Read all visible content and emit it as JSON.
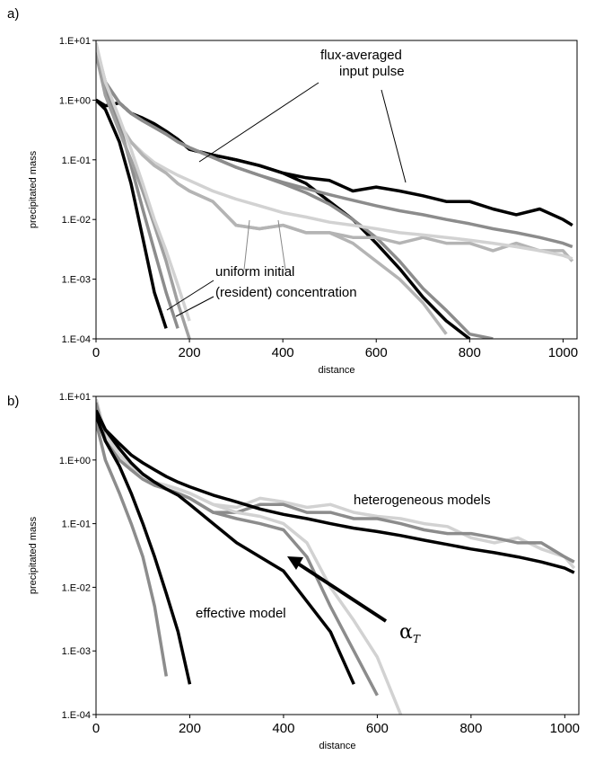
{
  "chart_data": [
    {
      "type": "line",
      "panel_label": "a)",
      "xlabel": "distance",
      "ylabel": "precipitated mass",
      "log_scale": true,
      "xlim": [
        0,
        1030
      ],
      "xticks": [
        0,
        200,
        400,
        600,
        800,
        1000
      ],
      "ylim": [
        0.0001,
        10
      ],
      "yticks": [
        {
          "value": 0.0001,
          "label": "1.E-04"
        },
        {
          "value": 0.001,
          "label": "1.E-03"
        },
        {
          "value": 0.01,
          "label": "1.E-02"
        },
        {
          "value": 0.1,
          "label": "1.E-01"
        },
        {
          "value": 1,
          "label": "1.E+00"
        },
        {
          "value": 10,
          "label": "1.E+01"
        }
      ],
      "annotations": [
        "flux-averaged",
        "input pulse",
        "uniform initial",
        "(resident) concentration"
      ],
      "x": [
        0,
        20,
        50,
        75,
        100,
        125,
        150,
        175,
        200,
        250,
        300,
        350,
        400,
        450,
        500,
        550,
        600,
        650,
        700,
        750,
        800,
        850,
        900,
        950,
        1000,
        1020
      ],
      "series": [
        {
          "color": "#000000",
          "values": [
            1,
            0.8,
            0.9,
            0.6,
            0.5,
            0.4,
            0.3,
            0.22,
            0.15,
            0.12,
            0.1,
            0.08,
            0.06,
            0.05,
            0.045,
            0.03,
            0.035,
            0.03,
            0.025,
            0.02,
            0.02,
            0.015,
            0.012,
            0.015,
            0.01,
            0.008
          ]
        },
        {
          "color": "#000000",
          "values": [
            1,
            0.8,
            0.9,
            0.6,
            0.5,
            0.4,
            0.3,
            0.22,
            0.15,
            0.12,
            0.1,
            0.08,
            0.06,
            0.04,
            0.02,
            0.01,
            0.004,
            0.0015,
            0.0005,
            0.0002,
            0.0001,
            null,
            null,
            null,
            null,
            null
          ]
        },
        {
          "color": "#8c8c8c",
          "values": [
            8,
            2,
            0.9,
            0.6,
            0.45,
            0.35,
            0.27,
            0.2,
            0.16,
            0.11,
            0.075,
            0.055,
            0.042,
            0.033,
            0.026,
            0.021,
            0.017,
            0.014,
            0.012,
            0.01,
            0.0085,
            0.007,
            0.006,
            0.005,
            0.004,
            0.0035
          ]
        },
        {
          "color": "#8c8c8c",
          "values": [
            8,
            2,
            0.9,
            0.6,
            0.45,
            0.35,
            0.27,
            0.2,
            0.16,
            0.11,
            0.075,
            0.055,
            0.04,
            0.028,
            0.018,
            0.01,
            0.005,
            0.002,
            0.0007,
            0.0003,
            0.00012,
            0.0001,
            null,
            null,
            null,
            null
          ]
        },
        {
          "color": "#b4b4b4",
          "values": [
            9,
            1.5,
            0.4,
            0.2,
            0.12,
            0.08,
            0.06,
            0.04,
            0.03,
            0.02,
            0.008,
            0.007,
            0.008,
            0.006,
            0.006,
            0.005,
            0.005,
            0.004,
            0.005,
            0.004,
            0.004,
            0.003,
            0.004,
            0.003,
            0.003,
            0.002
          ]
        },
        {
          "color": "#d2d2d2",
          "values": [
            9,
            1.2,
            0.4,
            0.2,
            0.13,
            0.09,
            0.07,
            0.055,
            0.045,
            0.03,
            0.022,
            0.017,
            0.013,
            0.011,
            0.009,
            0.008,
            0.007,
            0.006,
            0.0055,
            0.005,
            0.0045,
            0.004,
            0.0035,
            0.003,
            0.0025,
            0.0022
          ]
        },
        {
          "color": "#b4b4b4",
          "values": [
            9,
            1.5,
            0.4,
            0.2,
            0.12,
            0.08,
            0.06,
            0.04,
            0.03,
            0.02,
            0.008,
            0.007,
            0.008,
            0.006,
            0.006,
            0.004,
            0.002,
            0.001,
            0.0004,
            0.00012,
            null,
            null,
            null,
            null,
            null,
            null
          ]
        },
        {
          "color": "#000000",
          "values": [
            1,
            0.7,
            0.2,
            0.04,
            0.005,
            0.0006,
            0.00015,
            null,
            null,
            null,
            null,
            null,
            null,
            null,
            null,
            null,
            null,
            null,
            null,
            null,
            null,
            null,
            null,
            null,
            null,
            null
          ]
        },
        {
          "color": "#8c8c8c",
          "values": [
            8,
            1.5,
            0.4,
            0.08,
            0.015,
            0.003,
            0.0006,
            0.00015,
            null,
            null,
            null,
            null,
            null,
            null,
            null,
            null,
            null,
            null,
            null,
            null,
            null,
            null,
            null,
            null,
            null,
            null
          ]
        },
        {
          "color": "#a0a0a0",
          "values": [
            6,
            1.2,
            0.3,
            0.1,
            0.03,
            0.008,
            0.002,
            0.0004,
            0.0001,
            null,
            null,
            null,
            null,
            null,
            null,
            null,
            null,
            null,
            null,
            null,
            null,
            null,
            null,
            null,
            null,
            null
          ]
        },
        {
          "color": "#d2d2d2",
          "values": [
            9,
            2,
            0.5,
            0.15,
            0.04,
            0.01,
            0.003,
            0.0008,
            0.0002,
            null,
            null,
            null,
            null,
            null,
            null,
            null,
            null,
            null,
            null,
            null,
            null,
            null,
            null,
            null,
            null,
            null
          ]
        }
      ]
    },
    {
      "type": "line",
      "panel_label": "b)",
      "xlabel": "distance",
      "ylabel": "precipitated mass",
      "log_scale": true,
      "xlim": [
        0,
        1030
      ],
      "xticks": [
        0,
        200,
        400,
        600,
        800,
        1000
      ],
      "ylim": [
        0.0001,
        10
      ],
      "yticks": [
        {
          "value": 0.0001,
          "label": "1.E-04"
        },
        {
          "value": 0.001,
          "label": "1.E-03"
        },
        {
          "value": 0.01,
          "label": "1.E-02"
        },
        {
          "value": 0.1,
          "label": "1.E-01"
        },
        {
          "value": 1,
          "label": "1.E+00"
        },
        {
          "value": 10,
          "label": "1.E+01"
        }
      ],
      "annotations": [
        "heterogeneous models",
        "effective model"
      ],
      "alpha_symbol": "α",
      "alpha_subscript": "T",
      "x": [
        0,
        20,
        50,
        75,
        100,
        125,
        150,
        175,
        200,
        250,
        300,
        350,
        400,
        450,
        500,
        550,
        600,
        650,
        700,
        750,
        800,
        850,
        900,
        950,
        1000,
        1020
      ],
      "series": [
        {
          "color": "#d2d2d2",
          "values": [
            9,
            2.5,
            1.2,
            0.8,
            0.6,
            0.45,
            0.4,
            0.35,
            0.3,
            0.2,
            0.18,
            0.25,
            0.22,
            0.18,
            0.2,
            0.15,
            0.13,
            0.12,
            0.1,
            0.09,
            0.06,
            0.05,
            0.06,
            0.04,
            0.03,
            0.02
          ]
        },
        {
          "color": "#8c8c8c",
          "values": [
            8,
            2,
            1,
            0.7,
            0.5,
            0.4,
            0.35,
            0.3,
            0.25,
            0.15,
            0.15,
            0.2,
            0.2,
            0.15,
            0.15,
            0.12,
            0.12,
            0.1,
            0.08,
            0.07,
            0.07,
            0.06,
            0.05,
            0.05,
            0.03,
            0.025
          ]
        },
        {
          "color": "#d2d2d2",
          "values": [
            9,
            2.5,
            1.2,
            0.8,
            0.6,
            0.45,
            0.4,
            0.35,
            0.3,
            0.2,
            0.15,
            0.13,
            0.1,
            0.05,
            0.01,
            0.003,
            0.0008,
            0.0001,
            null,
            null,
            null,
            null,
            null,
            null,
            null,
            null
          ]
        },
        {
          "color": "#8c8c8c",
          "values": [
            8,
            2,
            1,
            0.7,
            0.5,
            0.4,
            0.35,
            0.3,
            0.25,
            0.15,
            0.12,
            0.1,
            0.08,
            0.03,
            0.005,
            0.001,
            0.0002,
            null,
            null,
            null,
            null,
            null,
            null,
            null,
            null,
            null
          ]
        },
        {
          "color": "#000000",
          "values": [
            6,
            3,
            1.8,
            1.2,
            0.9,
            0.7,
            0.55,
            0.45,
            0.38,
            0.28,
            0.22,
            0.17,
            0.14,
            0.12,
            0.1,
            0.085,
            0.075,
            0.065,
            0.055,
            0.047,
            0.04,
            0.035,
            0.03,
            0.025,
            0.02,
            0.017
          ]
        },
        {
          "color": "#000000",
          "values": [
            6,
            3,
            1.5,
            0.9,
            0.6,
            0.45,
            0.35,
            0.28,
            0.2,
            0.1,
            0.05,
            0.03,
            0.018,
            0.006,
            0.002,
            0.0003,
            null,
            null,
            null,
            null,
            null,
            null,
            null,
            null,
            null,
            null
          ]
        },
        {
          "color": "#8c8c8c",
          "values": [
            4,
            1,
            0.3,
            0.1,
            0.03,
            0.005,
            0.0004,
            null,
            null,
            null,
            null,
            null,
            null,
            null,
            null,
            null,
            null,
            null,
            null,
            null,
            null,
            null,
            null,
            null,
            null,
            null
          ]
        },
        {
          "color": "#000000",
          "values": [
            5,
            2,
            0.8,
            0.3,
            0.1,
            0.03,
            0.008,
            0.002,
            0.0003,
            null,
            null,
            null,
            null,
            null,
            null,
            null,
            null,
            null,
            null,
            null,
            null,
            null,
            null,
            null,
            null,
            null
          ]
        }
      ]
    }
  ]
}
